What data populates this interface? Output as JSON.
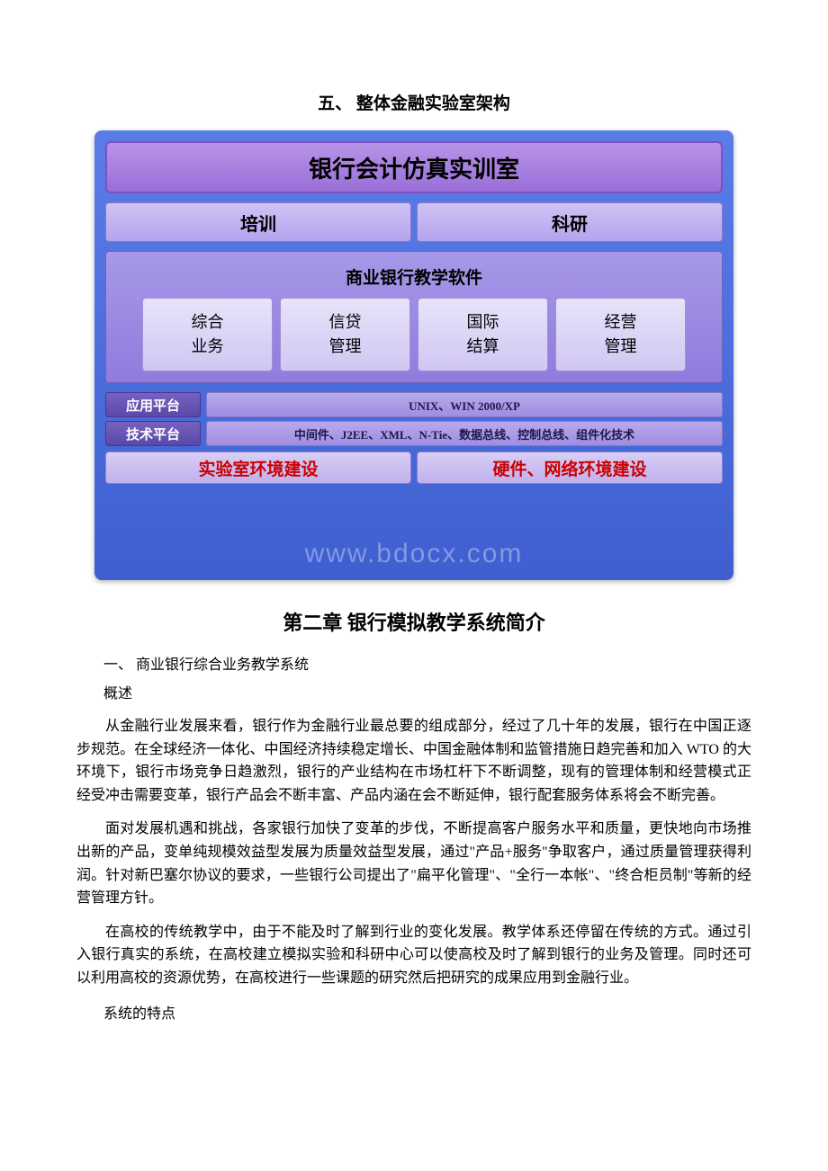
{
  "section5_title": "五、 整体金融实验室架构",
  "diagram": {
    "main_title": "银行会计仿真实训室",
    "tabs": [
      "培训",
      "科研"
    ],
    "modules_title": "商业银行教学软件",
    "modules": [
      {
        "line1": "综合",
        "line2": "业务"
      },
      {
        "line1": "信贷",
        "line2": "管理"
      },
      {
        "line1": "国际",
        "line2": "结算"
      },
      {
        "line1": "经营",
        "line2": "管理"
      }
    ],
    "platforms": [
      {
        "label": "应用平台",
        "value": "UNIX、WIN 2000/XP"
      },
      {
        "label": "技术平台",
        "value": "中间件、J2EE、XML、N-Tie、数据总线、控制总线、组件化技术"
      }
    ],
    "bottom": [
      "实验室环境建设",
      "硬件、网络环境建设"
    ],
    "watermark": "www.bdocx.com",
    "colors": {
      "bg_gradient_start": "#5a7de8",
      "bg_gradient_end": "#3f5fd0",
      "title_gradient_start": "#b893e8",
      "title_gradient_end": "#9a6fd8",
      "tab_gradient_start": "#cfc3f5",
      "tab_gradient_end": "#b5a3ed",
      "module_container_start": "#a798e8",
      "module_container_end": "#8f7cdd",
      "module_start": "#e8e3fa",
      "module_end": "#d0c7f2",
      "platform_label_start": "#7561bf",
      "platform_label_end": "#5c48a8",
      "platform_value_start": "#b8a9ec",
      "platform_value_end": "#a08de0",
      "bottom_start": "#d8cef5",
      "bottom_end": "#c0b0ed",
      "bottom_text": "#cc0000"
    }
  },
  "chapter_title": "第二章 银行模拟教学系统简介",
  "subsection": "一、 商业银行综合业务教学系统",
  "subhead1": "概述",
  "para1": "从金融行业发展来看，银行作为金融行业最总要的组成部分，经过了几十年的发展，银行在中国正逐步规范。在全球经济一体化、中国经济持续稳定增长、中国金融体制和监管措施日趋完善和加入 WTO 的大环境下，银行市场竞争日趋激烈，银行的产业结构在市场杠杆下不断调整，现有的管理体制和经营模式正经受冲击需要变革，银行产品会不断丰富、产品内涵在会不断延伸，银行配套服务体系将会不断完善。",
  "para2": "面对发展机遇和挑战，各家银行加快了变革的步伐，不断提高客户服务水平和质量，更快地向市场推出新的产品，变单纯规模效益型发展为质量效益型发展，通过\"产品+服务\"争取客户，通过质量管理获得利润。针对新巴塞尔协议的要求，一些银行公司提出了\"扁平化管理\"、\"全行一本帐\"、\"终合柜员制\"等新的经营管理方针。",
  "para3": "在高校的传统教学中，由于不能及时了解到行业的变化发展。教学体系还停留在传统的方式。通过引入银行真实的系统，在高校建立模拟实验和科研中心可以使高校及时了解到银行的业务及管理。同时还可以利用高校的资源优势，在高校进行一些课题的研究然后把研究的成果应用到金融行业。",
  "subhead2": "系统的特点"
}
